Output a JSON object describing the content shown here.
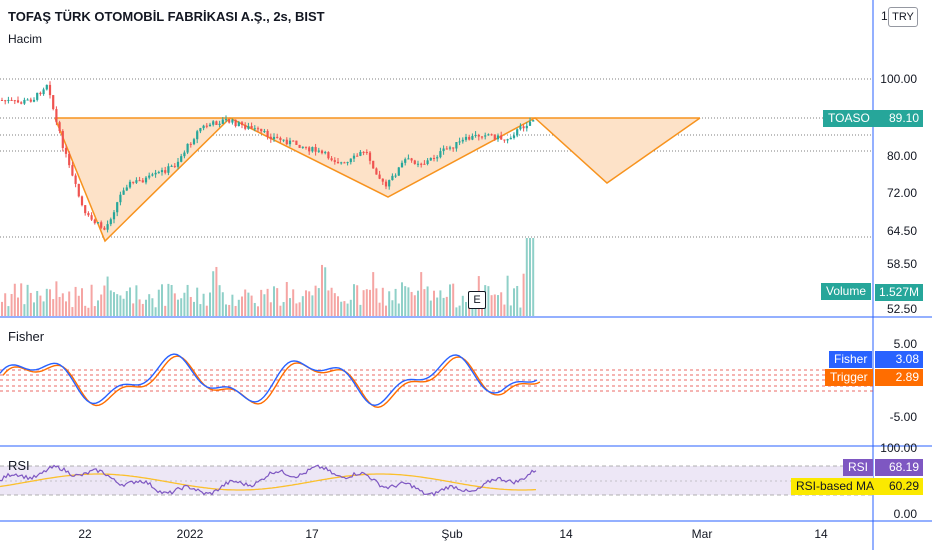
{
  "header": {
    "symbol_title": "TOFAŞ TÜRK OTOMOBİL FABRİKASI A.Ş., 2s, BIST",
    "volume_label": "Hacim",
    "currency": "TRY",
    "axis_top_fragment": "1"
  },
  "price_axis": [
    "100.00",
    "80.00",
    "72.00",
    "64.50",
    "58.50",
    "52.50"
  ],
  "price_tag": {
    "name": "TOASO",
    "value": "89.10",
    "color": "#26a69a"
  },
  "volume_tag": {
    "name": "Volume",
    "value": "1.527M",
    "color": "#26a69a"
  },
  "earnings_badge": "E",
  "fisher": {
    "title": "Fisher",
    "axis": [
      "5.00",
      "-5.00"
    ],
    "fisher_tag": {
      "name": "Fisher",
      "value": "3.08",
      "color": "#2962ff"
    },
    "trigger_tag": {
      "name": "Trigger",
      "value": "2.89",
      "color": "#ff6d00"
    }
  },
  "rsi": {
    "title": "RSI",
    "axis": [
      "100.00",
      "0.00"
    ],
    "rsi_tag": {
      "name": "RSI",
      "value": "68.19",
      "color": "#7e57c2"
    },
    "ma_tag": {
      "name": "RSI-based MA",
      "value": "60.29",
      "color": "#fbe900"
    }
  },
  "time_axis": [
    "22",
    "2022",
    "17",
    "Şub",
    "14",
    "Mar",
    "14"
  ],
  "colors": {
    "up": "#26a69a",
    "down": "#ef5350",
    "pattern": "#f7931e",
    "pattern_fill": "#fde2c8",
    "divider": "#2962ff"
  }
}
